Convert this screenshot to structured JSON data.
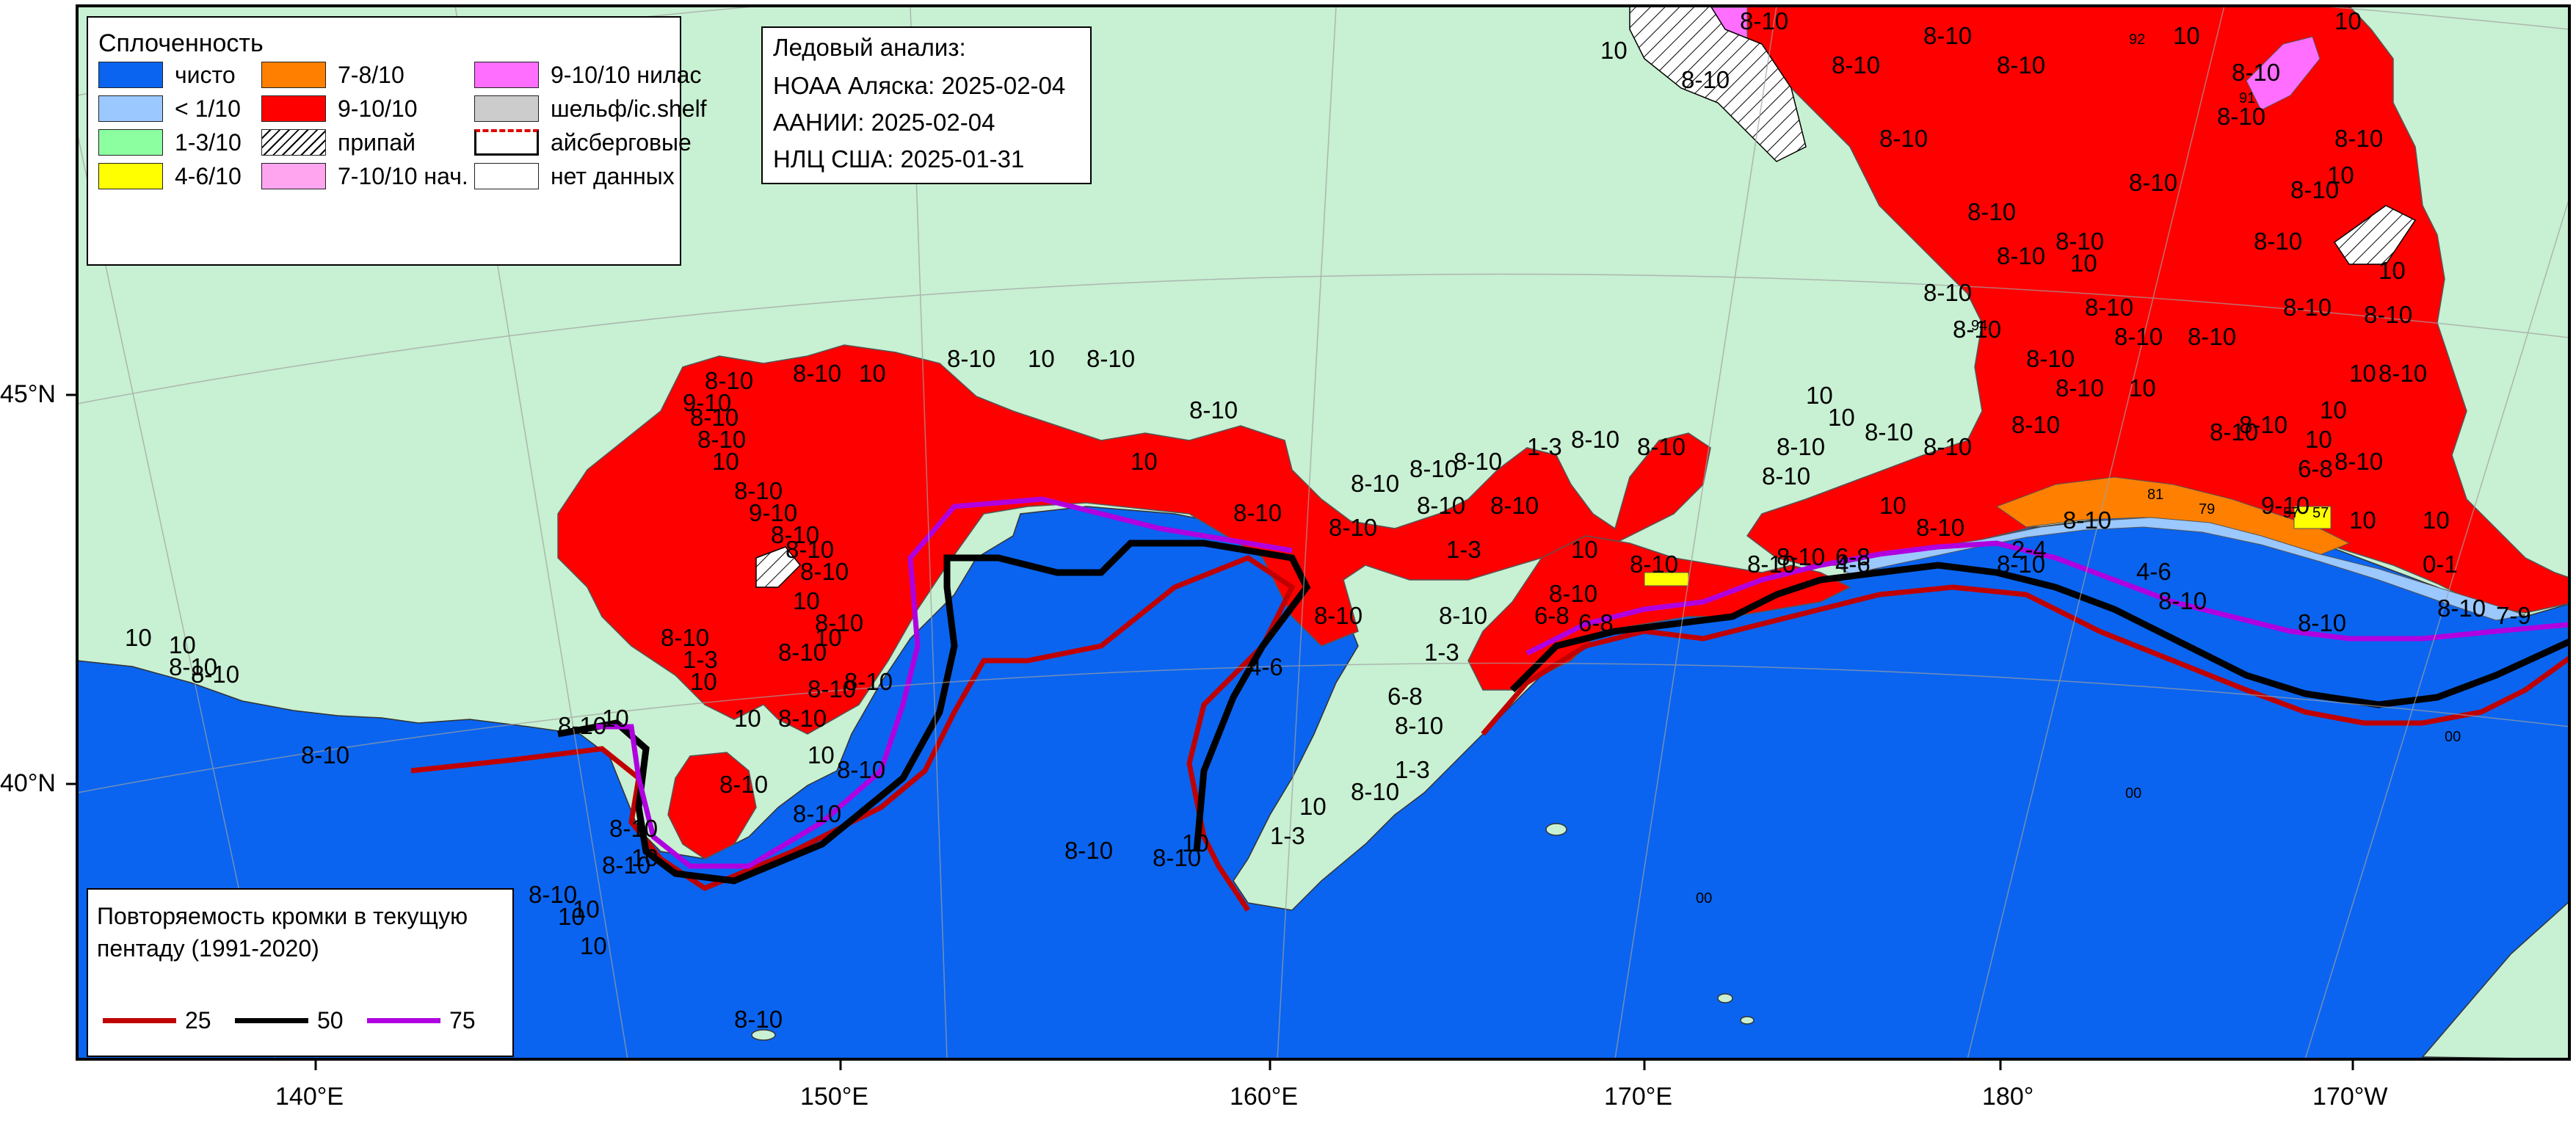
{
  "colors": {
    "water": "#0a64f0",
    "land": "#c8f0d2",
    "ice_9_10": "#ff0000",
    "ice_7_8": "#ff8000",
    "ice_4_6": "#ffff00",
    "ice_1_3": "#8cffa0",
    "ice_lt1": "#9bc8ff",
    "nilas": "#ff6eff",
    "young": "#ffa5f0",
    "shelf": "#cccccc",
    "no_data": "#ffffff",
    "freq_25": "#c00000",
    "freq_50": "#000000",
    "freq_75": "#b000e0",
    "graticule": "#a0a0a0"
  },
  "legend": {
    "title": "Сплоченность",
    "items": [
      {
        "label": "чисто",
        "color": "#0a64f0"
      },
      {
        "label": "< 1/10",
        "color": "#9bc8ff"
      },
      {
        "label": "1-3/10",
        "color": "#8cffa0"
      },
      {
        "label": "4-6/10",
        "color": "#ffff00"
      },
      {
        "label": "7-8/10",
        "color": "#ff8000"
      },
      {
        "label": "9-10/10",
        "color": "#ff0000"
      },
      {
        "label": "припай",
        "pattern": "hatch"
      },
      {
        "label": "7-10/10 нач.",
        "color": "#ffa5f0"
      },
      {
        "label": "9-10/10 нилас",
        "color": "#ff6eff"
      },
      {
        "label": "шельф/ic.shelf",
        "color": "#cccccc"
      },
      {
        "label": "айсберговые",
        "pattern": "iceberg"
      },
      {
        "label": "нет данных",
        "color": "#ffffff"
      }
    ]
  },
  "analysis": {
    "title": "Ледовый анализ:",
    "lines": [
      "НОАА Аляска: 2025-02-04",
      "ААНИИ: 2025-02-04",
      "НЛЦ США: 2025-01-31"
    ]
  },
  "frequency": {
    "title_line1": "Повторяемость кромки в текущую",
    "title_line2": "пентаду (1991-2020)",
    "items": [
      {
        "label": "25",
        "color": "#c00000"
      },
      {
        "label": "50",
        "color": "#000000"
      },
      {
        "label": "75",
        "color": "#b000e0"
      }
    ]
  },
  "axes": {
    "lat_labels": [
      "45°N",
      "40°N"
    ],
    "lon_labels": [
      "140°E",
      "150°E",
      "160°E",
      "170°E",
      "180°",
      "170°W"
    ]
  },
  "map_labels": [
    "8-10",
    "8-10",
    "8-10",
    "8-10",
    "10",
    "8-10",
    "10",
    "8-10",
    "8-10",
    "10",
    "8-10",
    "8-10",
    "8-10",
    "8-10",
    "10",
    "8-10",
    "8-10",
    "8-10",
    "8-10",
    "8-10",
    "10",
    "8-10",
    "8-10",
    "8-10",
    "8-10",
    "8-10",
    "8-10",
    "10",
    "8-10",
    "10",
    "8-10",
    "10",
    "8-10",
    "10",
    "8-10",
    "10",
    "10",
    "10",
    "8-10",
    "8-10",
    "10",
    "8-10",
    "8-10",
    "8-10",
    "8-10",
    "8-10",
    "10",
    "10",
    "4-6",
    "8-10",
    "8-10",
    "10",
    "8-10",
    "10",
    "8-10",
    "8-10",
    "10",
    "8-10",
    "8-10",
    "8-10",
    "8-10",
    "8-10",
    "1-3",
    "8-10",
    "8-10",
    "8-10",
    "10",
    "8-10",
    "8-10",
    "1-3",
    "8-10",
    "6-8",
    "8-10",
    "1-3",
    "6-8",
    "8-10",
    "1-3",
    "8-10",
    "10",
    "1-3",
    "10",
    "8-10",
    "4-6",
    "6-8",
    "8-10",
    "8-10",
    "6-8",
    "2-4",
    "4-6",
    "8-10",
    "8-10",
    "8-10",
    "7-9",
    "8-10",
    "6-8",
    "9-10",
    "0-1",
    "8-10",
    "8-10",
    "9-10",
    "8-10",
    "8-10",
    "10",
    "8-10",
    "9-10",
    "8-10",
    "8-10",
    "8-10",
    "10",
    "8-10",
    "10",
    "8-10",
    "8-10",
    "8-10",
    "8-10",
    "1-3",
    "10",
    "10",
    "8-10",
    "10",
    "8-10",
    "8-10",
    "8-10",
    "10",
    "8-10",
    "8-10",
    "10",
    "10",
    "8-10",
    "10",
    "10",
    "10",
    "8-10",
    "8-10",
    "8-10",
    "8-10",
    "10",
    "8-10",
    "8-10",
    "8-10"
  ],
  "small_codes": [
    "00",
    "00",
    "00",
    "57",
    "57",
    "79",
    "81",
    "91",
    "92",
    "94"
  ]
}
